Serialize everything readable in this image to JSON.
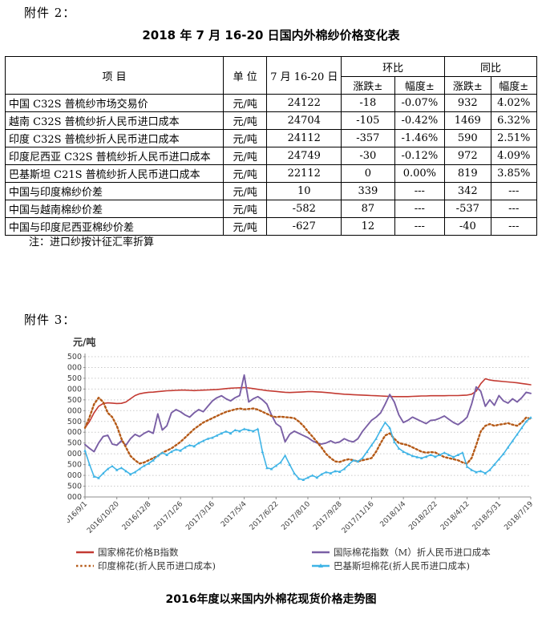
{
  "page": {
    "attachment2_label": "附件 2：",
    "attachment3_label": "附件 3："
  },
  "table": {
    "title": "2018 年 7 月 16-20 日国内外棉纱价格变化表",
    "header": {
      "item": "项  目",
      "unit": "单 位",
      "period": "7 月 16-20 日",
      "mom": "环比",
      "yoy": "同比",
      "change": "涨跌±",
      "rate": "幅度±"
    },
    "rows": [
      [
        "中国 C32S 普梳纱市场交易价",
        "元/吨",
        "24122",
        "-18",
        "-0.07%",
        "932",
        "4.02%"
      ],
      [
        "越南 C32S 普梳纱折人民币进口成本",
        "元/吨",
        "24704",
        "-105",
        "-0.42%",
        "1469",
        "6.32%"
      ],
      [
        "印度 C32S 普梳纱折人民币进口成本",
        "元/吨",
        "24112",
        "-357",
        "-1.46%",
        "590",
        "2.51%"
      ],
      [
        "印度尼西亚 C32S 普梳纱折人民币进口成本",
        "元/吨",
        "24749",
        "-30",
        "-0.12%",
        "972",
        "4.09%"
      ],
      [
        "巴基斯坦 C21S 普梳纱折人民币进口成本",
        "元/吨",
        "22112",
        "0",
        "0.00%",
        "819",
        "3.85%"
      ],
      [
        "中国与印度棉纱价差",
        "元/吨",
        "10",
        "339",
        "---",
        "342",
        "---"
      ],
      [
        "中国与越南棉纱价差",
        "元/吨",
        "-582",
        "87",
        "---",
        "-537",
        "---"
      ],
      [
        "中国与印度尼西亚棉纱价差",
        "元/吨",
        "-627",
        "12",
        "---",
        "-40",
        "---"
      ]
    ],
    "note": "注：进口纱按计征汇率折算"
  },
  "chart_data": {
    "type": "line",
    "title": "2016年度以来国内外棉花现货价格走势图",
    "ylabel": "元/吨",
    "ylim": [
      11000,
      17500
    ],
    "ytick_step": 500,
    "grid": "horizontal-dotted",
    "legend_position": "bottom-two-columns",
    "x_tick_labels": [
      "2016/9/1",
      "2016/10/20",
      "2016/12/8",
      "2017/1/26",
      "2017/3/16",
      "2017/5/4",
      "2017/6/22",
      "2017/8/10",
      "2017/9/28",
      "2017/11/16",
      "2018/1/4",
      "2018/2/22",
      "2018/4/12",
      "2018/5/31",
      "2018/7/19"
    ],
    "colors": {
      "cncotton_b": "#C33A32",
      "intl_m": "#7A5FA5",
      "india": "#B55A18",
      "pakistan": "#3FB4E6",
      "grid": "#C9C9C9",
      "axis": "#8C8C8C",
      "tick_text": "#404040"
    },
    "series": [
      {
        "name": "国家棉花价格B指数",
        "style": "solid",
        "color": "#C33A32",
        "values": [
          14200,
          14500,
          14900,
          15200,
          15330,
          15360,
          15350,
          15330,
          15340,
          15400,
          15550,
          15700,
          15780,
          15820,
          15850,
          15860,
          15880,
          15900,
          15920,
          15930,
          15940,
          15950,
          15950,
          15940,
          15930,
          15940,
          15950,
          15960,
          15970,
          15980,
          16000,
          16020,
          16040,
          16050,
          16060,
          16070,
          16050,
          16020,
          15990,
          15960,
          15930,
          15910,
          15890,
          15870,
          15850,
          15840,
          15850,
          15860,
          15870,
          15880,
          15880,
          15870,
          15860,
          15840,
          15820,
          15800,
          15780,
          15760,
          15750,
          15740,
          15730,
          15720,
          15710,
          15700,
          15690,
          15680,
          15670,
          15660,
          15650,
          15650,
          15650,
          15650,
          15660,
          15670,
          15680,
          15680,
          15690,
          15690,
          15690,
          15690,
          15700,
          15700,
          15700,
          15710,
          15720,
          15760,
          15900,
          16250,
          16480,
          16420,
          16390,
          16370,
          16350,
          16330,
          16310,
          16290,
          16260,
          16230,
          16200
        ]
      },
      {
        "name": "国际棉花指数（M）折人民币进口成本",
        "style": "solid",
        "color": "#7A5FA5",
        "values": [
          13430,
          13250,
          13100,
          13500,
          13800,
          13860,
          13450,
          13400,
          13600,
          13400,
          13700,
          13900,
          13800,
          13950,
          14050,
          13950,
          14850,
          14100,
          14300,
          14900,
          15050,
          14950,
          14800,
          14700,
          14900,
          15050,
          14950,
          15200,
          15450,
          15600,
          15690,
          15550,
          15450,
          15600,
          15700,
          16650,
          15400,
          15550,
          15650,
          15500,
          15300,
          14800,
          14400,
          14250,
          13550,
          13900,
          14050,
          13950,
          13850,
          13750,
          13600,
          13500,
          13450,
          13500,
          13600,
          13500,
          13550,
          13700,
          13600,
          13550,
          13700,
          14040,
          14300,
          14550,
          14700,
          14900,
          15300,
          15750,
          15400,
          14800,
          14450,
          14550,
          14700,
          14600,
          14500,
          14400,
          14550,
          14570,
          14650,
          14750,
          14600,
          14450,
          14350,
          14500,
          14700,
          15300,
          16100,
          15900,
          15200,
          15500,
          15250,
          15700,
          15450,
          15350,
          15550,
          15400,
          15600,
          15850,
          15800
        ]
      },
      {
        "name": "印度棉花(折人民币进口成本)",
        "style": "dotted",
        "color": "#B55A18",
        "values": [
          14200,
          14700,
          15300,
          15600,
          15400,
          14900,
          14700,
          14300,
          13700,
          13300,
          12900,
          12700,
          12550,
          12600,
          12700,
          12800,
          12900,
          13050,
          13150,
          13250,
          13400,
          13550,
          13750,
          13950,
          14150,
          14300,
          14450,
          14550,
          14650,
          14750,
          14850,
          14940,
          15000,
          15060,
          15100,
          15060,
          15080,
          15100,
          15050,
          14950,
          14850,
          14750,
          14700,
          14720,
          14700,
          14680,
          14650,
          14500,
          14300,
          14040,
          13800,
          13550,
          13290,
          13000,
          12800,
          12650,
          12620,
          12700,
          12750,
          12700,
          12650,
          12700,
          12750,
          12800,
          13100,
          13500,
          13850,
          13950,
          13700,
          13500,
          13450,
          13400,
          13300,
          13200,
          13100,
          13050,
          13080,
          13060,
          12950,
          12850,
          12800,
          12750,
          12700,
          12600,
          12550,
          12800,
          13400,
          14040,
          14300,
          14380,
          14300,
          14350,
          14380,
          14420,
          14350,
          14300,
          14450,
          14680,
          14620
        ]
      },
      {
        "name": "巴基斯坦棉花(折人民币进口成本)",
        "style": "solid-triangle-marker",
        "color": "#3FB4E6",
        "values": [
          13150,
          12500,
          11950,
          11880,
          12100,
          12300,
          12430,
          12250,
          12350,
          12200,
          12050,
          12150,
          12300,
          12450,
          12550,
          12700,
          12900,
          13050,
          12950,
          13100,
          13200,
          13150,
          13300,
          13400,
          13350,
          13500,
          13600,
          13700,
          13750,
          13850,
          13950,
          14040,
          13950,
          14100,
          14050,
          14150,
          14100,
          14050,
          14150,
          13100,
          12350,
          12300,
          12450,
          12600,
          12920,
          12500,
          12100,
          11850,
          11800,
          11900,
          12000,
          11900,
          12050,
          12150,
          12100,
          12200,
          12170,
          12300,
          12500,
          12700,
          12650,
          12800,
          13100,
          13400,
          13700,
          14100,
          14450,
          14200,
          13550,
          13250,
          13100,
          13000,
          12900,
          12850,
          12800,
          12870,
          12950,
          12870,
          12950,
          13050,
          12950,
          12850,
          12950,
          13050,
          12400,
          12250,
          12150,
          12200,
          12100,
          12250,
          12500,
          12750,
          13000,
          13300,
          13600,
          13900,
          14200,
          14500,
          14680
        ]
      }
    ]
  }
}
